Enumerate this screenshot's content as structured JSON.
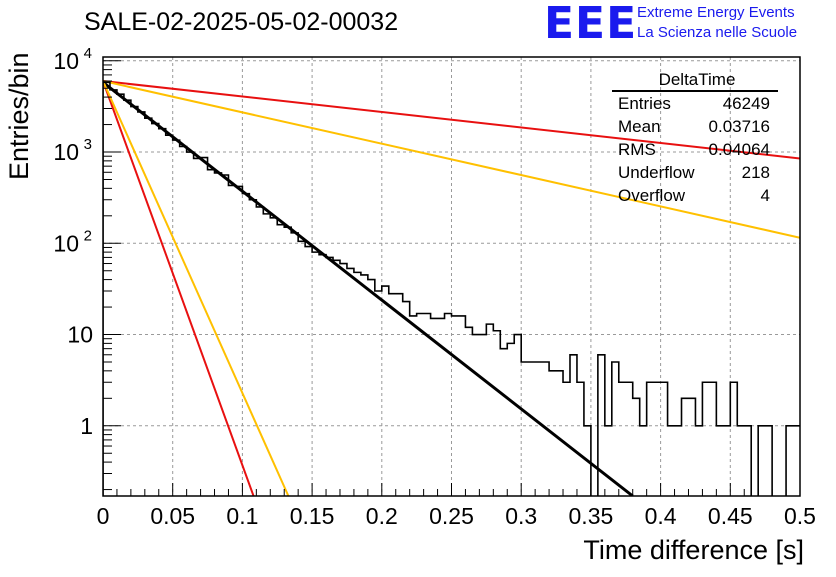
{
  "title": "SALE-02-2025-05-02-00032",
  "logo": {
    "mark": "EEE",
    "line1": "Extreme Energy Events",
    "line2": "La Scienza nelle Scuole",
    "color": "#1a1aee"
  },
  "stats": {
    "name": "DeltaTime",
    "rows": [
      {
        "label": "Entries",
        "value": "46249"
      },
      {
        "label": "Mean",
        "value": "0.03716"
      },
      {
        "label": "RMS",
        "value": "0.04064"
      },
      {
        "label": "Underflow",
        "value": "218"
      },
      {
        "label": "Overflow",
        "value": "4"
      }
    ]
  },
  "chart_data": {
    "type": "line",
    "xlabel": "Time difference [s]",
    "ylabel": "Entries/bin",
    "xlim": [
      0,
      0.5
    ],
    "ylim": [
      0.17,
      11000
    ],
    "yscale": "log",
    "grid": true,
    "xticks": [
      "0",
      "0.05",
      "0.1",
      "0.15",
      "0.2",
      "0.25",
      "0.3",
      "0.35",
      "0.4",
      "0.45",
      "0.5"
    ],
    "yticks": [
      {
        "value": 1,
        "label": "1"
      },
      {
        "value": 10,
        "label": "10"
      },
      {
        "value": 100,
        "label": "10",
        "sup": "2"
      },
      {
        "value": 1000,
        "label": "10",
        "sup": "3"
      },
      {
        "value": 10000,
        "label": "10",
        "sup": "4"
      }
    ],
    "histogram": {
      "bin_width": 0.005,
      "color": "#000000",
      "values": [
        5800,
        4800,
        4300,
        3700,
        3150,
        2750,
        2350,
        2050,
        1800,
        1530,
        1350,
        1150,
        1000,
        850,
        870,
        640,
        590,
        560,
        430,
        420,
        350,
        300,
        250,
        210,
        190,
        160,
        150,
        130,
        105,
        92,
        80,
        75,
        70,
        65,
        60,
        53,
        48,
        45,
        40,
        30,
        34,
        28,
        28,
        23,
        16,
        17,
        17,
        15,
        15,
        17,
        16,
        16,
        12,
        10,
        10,
        13,
        11,
        7,
        8,
        10,
        5,
        5,
        5,
        5,
        4,
        4,
        3,
        6,
        3,
        1,
        0,
        6,
        1,
        5,
        3,
        3,
        2,
        1,
        3,
        3,
        3,
        1,
        1,
        2,
        2,
        1,
        3,
        3,
        1,
        1,
        3,
        1,
        1,
        0,
        1,
        1,
        0,
        0,
        1,
        1
      ]
    },
    "fits": [
      {
        "color": "#000000",
        "width": 3,
        "points": [
          [
            0,
            5800
          ],
          [
            0.38,
            0.17
          ]
        ]
      },
      {
        "color": "#e81010",
        "width": 2,
        "points": [
          [
            0,
            6000
          ],
          [
            0.5,
            850
          ]
        ]
      },
      {
        "color": "#ffc000",
        "width": 2,
        "points": [
          [
            0,
            6000
          ],
          [
            0.5,
            115
          ]
        ]
      },
      {
        "color": "#e81010",
        "width": 2,
        "points": [
          [
            0,
            6000
          ],
          [
            0.108,
            0.17
          ]
        ]
      },
      {
        "color": "#ffc000",
        "width": 2,
        "points": [
          [
            0,
            6000
          ],
          [
            0.133,
            0.17
          ]
        ]
      }
    ]
  }
}
